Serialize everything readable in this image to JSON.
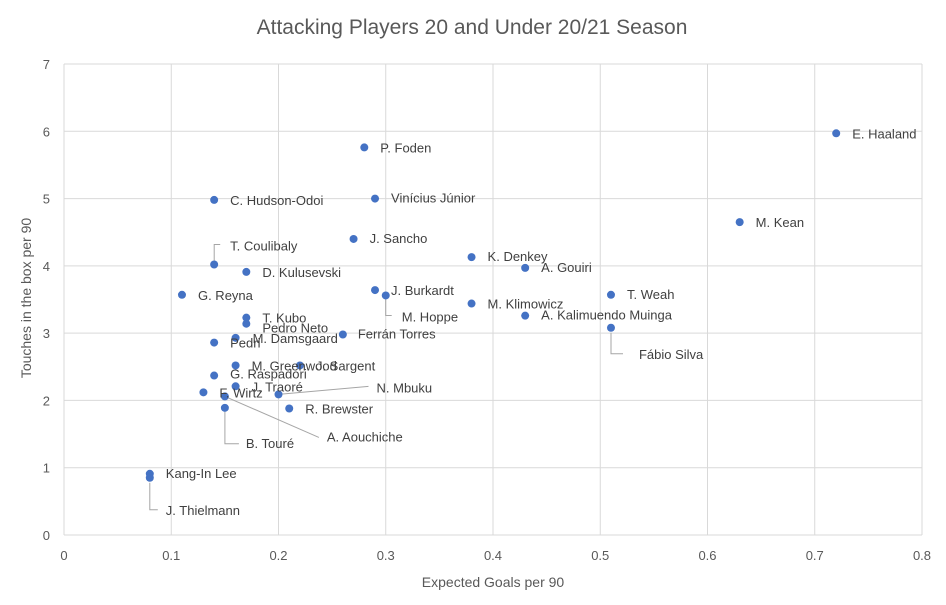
{
  "chart_data": {
    "type": "scatter",
    "title": "Attacking Players 20 and Under 20/21 Season",
    "xlabel": "Expected Goals per 90",
    "ylabel": "Touches in the box per 90",
    "xlim": [
      0,
      0.8
    ],
    "ylim": [
      0,
      7
    ],
    "xticks": [
      "0",
      "0.1",
      "0.2",
      "0.3",
      "0.4",
      "0.5",
      "0.6",
      "0.7",
      "0.8"
    ],
    "yticks": [
      "0",
      "1",
      "2",
      "3",
      "4",
      "5",
      "6",
      "7"
    ],
    "grid": true,
    "legend": "none",
    "marker_color": "#4472c4",
    "points": [
      {
        "label": "E. Haaland",
        "x": 0.72,
        "y": 5.97
      },
      {
        "label": "M. Kean",
        "x": 0.63,
        "y": 4.65
      },
      {
        "label": "P. Foden",
        "x": 0.28,
        "y": 5.76
      },
      {
        "label": "Vinícius Júnior",
        "x": 0.29,
        "y": 5.0
      },
      {
        "label": "C. Hudson-Odoi",
        "x": 0.14,
        "y": 4.98
      },
      {
        "label": "J. Sancho",
        "x": 0.27,
        "y": 4.4
      },
      {
        "label": "T. Coulibaly",
        "x": 0.14,
        "y": 4.02
      },
      {
        "label": "D. Kulusevski",
        "x": 0.17,
        "y": 3.91
      },
      {
        "label": "K. Denkey",
        "x": 0.38,
        "y": 4.13
      },
      {
        "label": "A. Gouiri",
        "x": 0.43,
        "y": 3.97
      },
      {
        "label": "G. Reyna",
        "x": 0.11,
        "y": 3.57
      },
      {
        "label": "J. Burkardt",
        "x": 0.29,
        "y": 3.64
      },
      {
        "label": "M. Hoppe",
        "x": 0.3,
        "y": 3.56
      },
      {
        "label": "M. Klimowicz",
        "x": 0.38,
        "y": 3.44
      },
      {
        "label": "T. Weah",
        "x": 0.51,
        "y": 3.57
      },
      {
        "label": "A. Kalimuendo Muinga",
        "x": 0.43,
        "y": 3.26
      },
      {
        "label": "Fábio Silva",
        "x": 0.51,
        "y": 3.08
      },
      {
        "label": "T. Kubo",
        "x": 0.17,
        "y": 3.23
      },
      {
        "label": "Pedro Neto",
        "x": 0.17,
        "y": 3.14
      },
      {
        "label": "Ferrán Torres",
        "x": 0.26,
        "y": 2.98
      },
      {
        "label": "M. Damsgaard",
        "x": 0.16,
        "y": 2.93
      },
      {
        "label": "Pedri",
        "x": 0.14,
        "y": 2.86
      },
      {
        "label": "M. Greenwood",
        "x": 0.16,
        "y": 2.52
      },
      {
        "label": "J. Sargent",
        "x": 0.22,
        "y": 2.52
      },
      {
        "label": "G. Raspadori",
        "x": 0.14,
        "y": 2.37
      },
      {
        "label": "J. Traoré",
        "x": 0.16,
        "y": 2.21
      },
      {
        "label": "F. Wirtz",
        "x": 0.13,
        "y": 2.12
      },
      {
        "label": "N. Mbuku",
        "x": 0.2,
        "y": 2.09
      },
      {
        "label": "A. Aouchiche",
        "x": 0.15,
        "y": 2.06
      },
      {
        "label": "B. Touré",
        "x": 0.15,
        "y": 1.89
      },
      {
        "label": "R. Brewster",
        "x": 0.21,
        "y": 1.88
      },
      {
        "label": "Kang-In Lee",
        "x": 0.08,
        "y": 0.91
      },
      {
        "label": "J. Thielmann",
        "x": 0.08,
        "y": 0.85
      }
    ]
  }
}
